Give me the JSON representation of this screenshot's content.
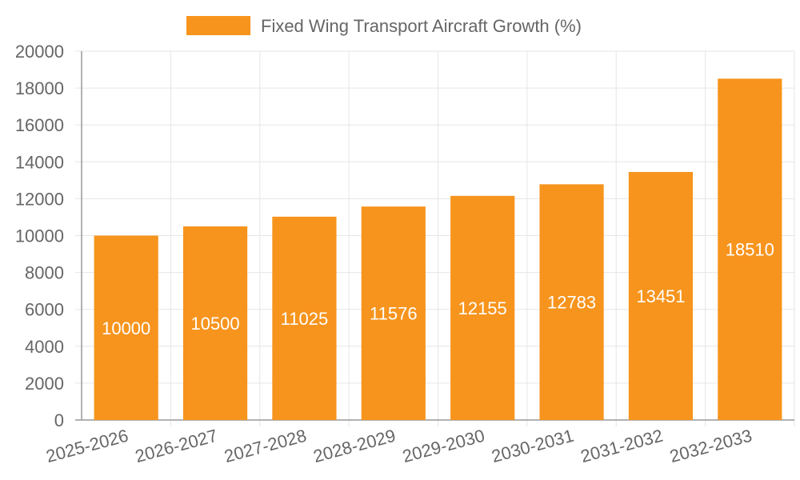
{
  "chart_data": {
    "type": "bar",
    "categories": [
      "2025-2026",
      "2026-2027",
      "2027-2028",
      "2028-2029",
      "2029-2030",
      "2030-2031",
      "2031-2032",
      "2032-2033"
    ],
    "series": [
      {
        "name": "Fixed Wing Transport Aircraft Growth (%)",
        "values": [
          10000,
          10500,
          11025,
          11576,
          12155,
          12783,
          13451,
          18510
        ],
        "color": "#F7941D"
      }
    ],
    "data_labels": [
      "10000",
      "10500",
      "11025",
      "11576",
      "12155",
      "12783",
      "13451",
      "18510"
    ],
    "ylim": [
      0,
      20000
    ],
    "yticks": [
      0,
      2000,
      4000,
      6000,
      8000,
      10000,
      12000,
      14000,
      16000,
      18000,
      20000
    ],
    "ytick_labels": [
      "0",
      "2000",
      "4000",
      "6000",
      "8000",
      "10000",
      "12000",
      "14000",
      "16000",
      "18000",
      "20000"
    ],
    "grid": true,
    "legend_position": "top",
    "xlabel": "",
    "ylabel": ""
  }
}
